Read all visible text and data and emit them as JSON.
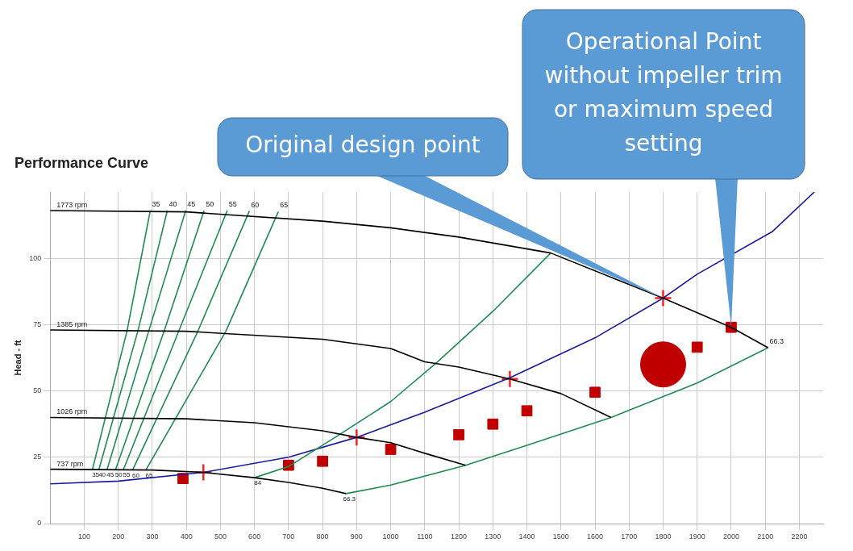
{
  "chart_data": {
    "type": "line",
    "title": "Performance Curve",
    "ylabel": "Head - ft",
    "xlim": [
      0,
      2270
    ],
    "ylim": [
      0,
      125
    ],
    "xticks": [
      100,
      200,
      300,
      400,
      500,
      600,
      700,
      800,
      900,
      1000,
      1100,
      1200,
      1300,
      1400,
      1500,
      1600,
      1700,
      1800,
      1900,
      2000,
      2100,
      2200
    ],
    "yticks": [
      0,
      25,
      50,
      75,
      100
    ],
    "grid": true,
    "legend": false,
    "series": [
      {
        "name": "1773 rpm",
        "marker": "none",
        "color": "#000000",
        "x": [
          0,
          400,
          800,
          1000,
          1200,
          1470,
          1800,
          2000,
          2108
        ],
        "values": [
          118,
          117.5,
          114,
          111.5,
          108,
          102,
          85,
          74,
          66.3
        ]
      },
      {
        "name": "1385 rpm",
        "marker": "none",
        "color": "#000000",
        "x": [
          0,
          400,
          800,
          1000,
          1100,
          1200,
          1350,
          1500,
          1647
        ],
        "values": [
          73,
          72.5,
          69.5,
          66,
          61,
          59,
          54.5,
          49,
          40
        ]
      },
      {
        "name": "1026 rpm",
        "marker": "none",
        "color": "#000000",
        "x": [
          0,
          400,
          600,
          800,
          900,
          1000,
          1100,
          1220
        ],
        "values": [
          40,
          39.5,
          38,
          35,
          32.5,
          30.5,
          26.5,
          22
        ]
      },
      {
        "name": "737 rpm",
        "marker": "none",
        "color": "#000000",
        "x": [
          0,
          300,
          450,
          600,
          700,
          800,
          869
        ],
        "values": [
          20.5,
          20.2,
          19.3,
          17.3,
          15.5,
          13.3,
          11.3
        ]
      },
      {
        "name": "35",
        "marker": "none",
        "color": "#1e8c50",
        "x": [
          124,
          226,
          294
        ],
        "values": [
          20.3,
          72.8,
          118
        ]
      },
      {
        "name": "40",
        "marker": "none",
        "color": "#1e8c50",
        "x": [
          143,
          258,
          344
        ],
        "values": [
          20.3,
          72.8,
          118
        ]
      },
      {
        "name": "45",
        "marker": "none",
        "color": "#1e8c50",
        "x": [
          167,
          290,
          398
        ],
        "values": [
          20.3,
          72.8,
          118
        ]
      },
      {
        "name": "50",
        "marker": "none",
        "color": "#1e8c50",
        "x": [
          192,
          335,
          452
        ],
        "values": [
          20.3,
          72.7,
          118
        ]
      },
      {
        "name": "55",
        "marker": "none",
        "color": "#1e8c50",
        "x": [
          215,
          378,
          520
        ],
        "values": [
          20.3,
          72.7,
          118
        ]
      },
      {
        "name": "60",
        "marker": "none",
        "color": "#1e8c50",
        "x": [
          242,
          434,
          585
        ],
        "values": [
          20.2,
          72.6,
          117.8
        ]
      },
      {
        "name": "65",
        "marker": "none",
        "color": "#1e8c50",
        "x": [
          281,
          516,
          670
        ],
        "values": [
          20.2,
          72.5,
          117.6
        ]
      },
      {
        "name": "84",
        "marker": "none",
        "color": "#1e8c50",
        "x": [
          600,
          700,
          848,
          1000,
          1138,
          1300,
          1470
        ],
        "values": [
          17.3,
          21.5,
          33.4,
          46,
          61,
          80,
          102
        ]
      },
      {
        "name": "66.3",
        "marker": "none",
        "color": "#1e8c50",
        "x": [
          869,
          1000,
          1220,
          1400,
          1647,
          1900,
          2108
        ],
        "values": [
          11.3,
          14.5,
          22,
          29.5,
          40,
          53,
          66.3
        ]
      },
      {
        "marker": "none",
        "color": "#1a1aa0",
        "x": [
          0,
          200,
          450,
          700,
          900,
          1100,
          1350,
          1600,
          1800,
          1900,
          2120,
          2244
        ],
        "values": [
          15,
          16,
          19.3,
          25,
          32.5,
          42,
          55,
          70,
          85,
          94,
          110,
          125
        ]
      },
      {
        "type": "scatter",
        "marker": "cross",
        "color": "#ff2020",
        "x": [
          450,
          900,
          1350,
          1800
        ],
        "values": [
          19.3,
          32.5,
          54.5,
          85
        ]
      },
      {
        "type": "scatter",
        "marker": "square",
        "color": "#c00000",
        "x": [
          390,
          700,
          800,
          1000,
          1200,
          1300,
          1400,
          1600,
          1900,
          2000
        ],
        "values": [
          17,
          22,
          23.5,
          28,
          33.5,
          37.5,
          42.5,
          49.5,
          66.5,
          74
        ]
      },
      {
        "type": "scatter",
        "marker": "circle",
        "color": "#c00000",
        "x": [
          1800
        ],
        "values": [
          60
        ]
      }
    ],
    "annotations": [
      {
        "text": "Original design point",
        "x": 1800,
        "y": 85
      },
      {
        "text": "Operational Point without impeller trim or maximum speed setting",
        "x": 2000,
        "y": 74
      }
    ]
  }
}
